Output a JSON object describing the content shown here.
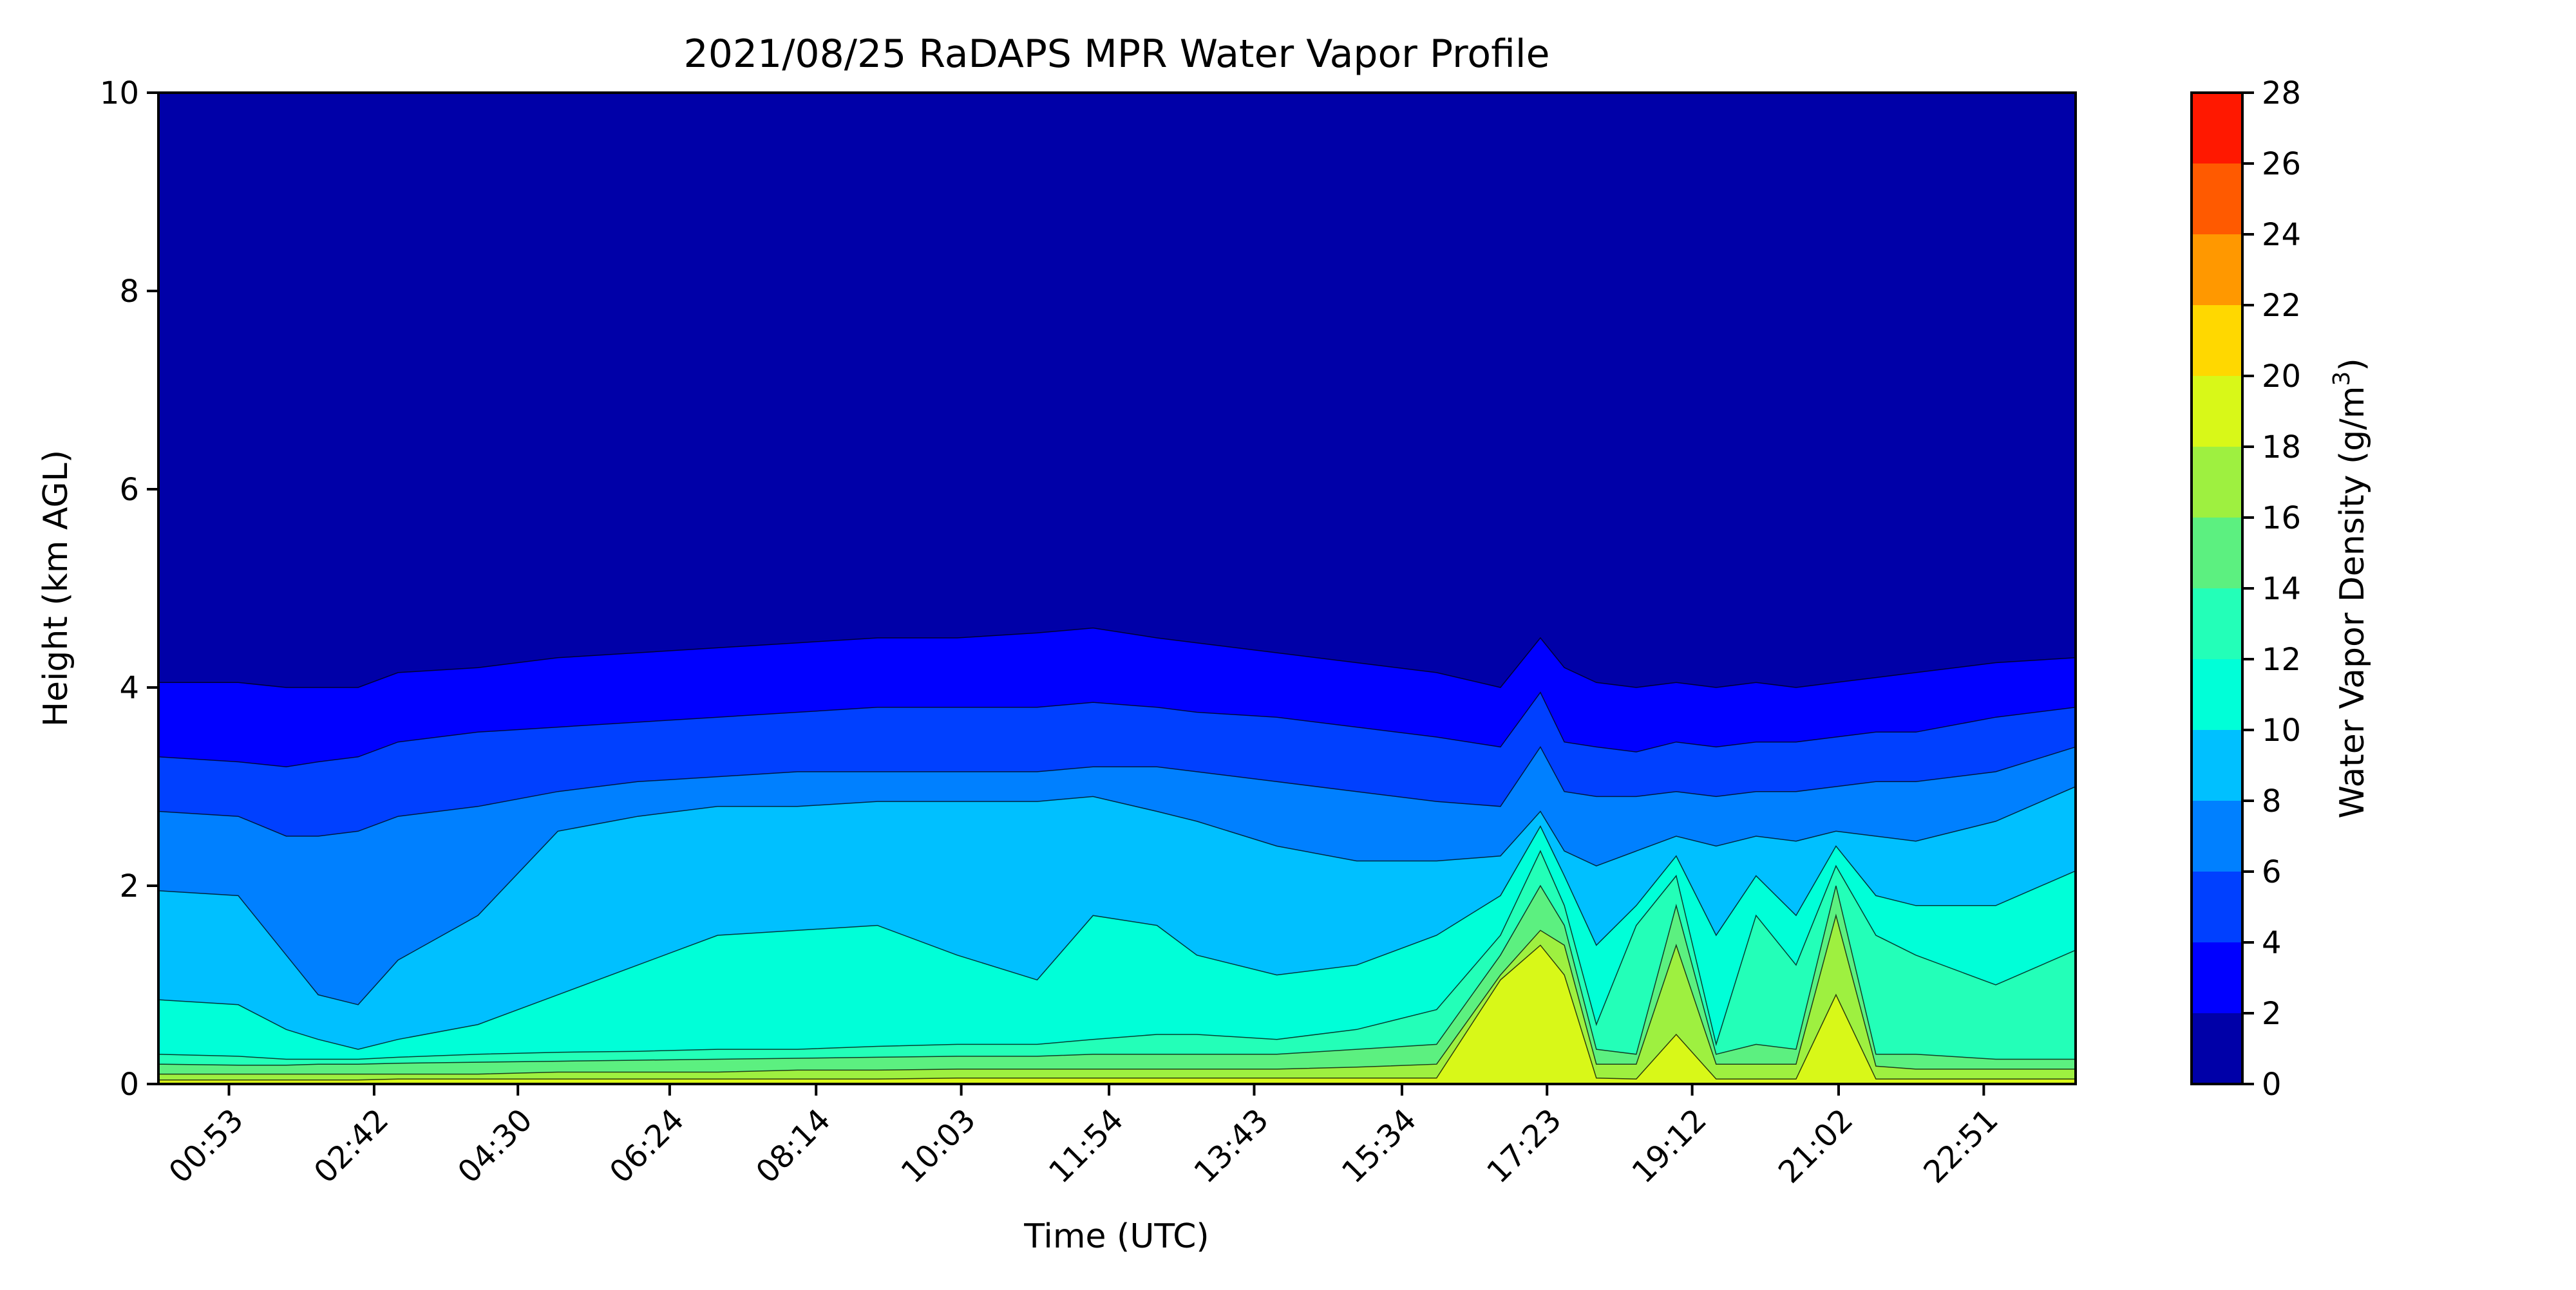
{
  "chart_data": {
    "type": "heatmap",
    "subtype": "filled-contour",
    "title": "2021/08/25 RaDAPS MPR Water Vapor Profile",
    "xlabel": "Time (UTC)",
    "ylabel": "Height (km AGL)",
    "xlim_hours": [
      0.0,
      24.0
    ],
    "ylim": [
      0,
      10
    ],
    "x_ticks": [
      {
        "label": "00:53",
        "hours": 0.883
      },
      {
        "label": "02:42",
        "hours": 2.7
      },
      {
        "label": "04:30",
        "hours": 4.5
      },
      {
        "label": "06:24",
        "hours": 6.4
      },
      {
        "label": "08:14",
        "hours": 8.233
      },
      {
        "label": "10:03",
        "hours": 10.05
      },
      {
        "label": "11:54",
        "hours": 11.9
      },
      {
        "label": "13:43",
        "hours": 13.717
      },
      {
        "label": "15:34",
        "hours": 15.567
      },
      {
        "label": "17:23",
        "hours": 17.383
      },
      {
        "label": "19:12",
        "hours": 19.2
      },
      {
        "label": "21:02",
        "hours": 21.033
      },
      {
        "label": "22:51",
        "hours": 22.85
      }
    ],
    "y_ticks": [
      0,
      2,
      4,
      6,
      8,
      10
    ],
    "colorbar": {
      "label": "Water Vapor Density (g/m",
      "label_sup": "3",
      "label_end": ")",
      "levels": [
        0,
        2,
        4,
        6,
        8,
        10,
        12,
        14,
        16,
        18,
        20,
        22,
        24,
        26,
        28
      ],
      "colors": [
        "#0000a8",
        "#0000ff",
        "#0040ff",
        "#0080ff",
        "#00c0ff",
        "#00ffd8",
        "#23ffb8",
        "#5cf080",
        "#9ef040",
        "#d8f818",
        "#ffd800",
        "#ff9800",
        "#ff5a00",
        "#ff1800",
        "#a80000"
      ]
    },
    "contour_boundaries_km": {
      "hours": [
        0.0,
        1.0,
        1.6,
        2.0,
        2.5,
        3.0,
        4.0,
        5.0,
        6.0,
        7.0,
        8.0,
        9.0,
        10.0,
        11.0,
        11.7,
        12.5,
        13.0,
        14.0,
        15.0,
        16.0,
        16.8,
        17.3,
        17.6,
        18.0,
        18.5,
        19.0,
        19.5,
        20.0,
        20.5,
        21.0,
        21.5,
        22.0,
        23.0,
        24.0
      ],
      "2": [
        4.05,
        4.05,
        4.0,
        4.0,
        4.0,
        4.15,
        4.2,
        4.3,
        4.35,
        4.4,
        4.45,
        4.5,
        4.5,
        4.55,
        4.6,
        4.5,
        4.45,
        4.35,
        4.25,
        4.15,
        4.0,
        4.5,
        4.2,
        4.05,
        4.0,
        4.05,
        4.0,
        4.05,
        4.0,
        4.05,
        4.1,
        4.15,
        4.25,
        4.3
      ],
      "4": [
        3.3,
        3.25,
        3.2,
        3.25,
        3.3,
        3.45,
        3.55,
        3.6,
        3.65,
        3.7,
        3.75,
        3.8,
        3.8,
        3.8,
        3.85,
        3.8,
        3.75,
        3.7,
        3.6,
        3.5,
        3.4,
        3.95,
        3.45,
        3.4,
        3.35,
        3.45,
        3.4,
        3.45,
        3.45,
        3.5,
        3.55,
        3.55,
        3.7,
        3.8
      ],
      "6": [
        2.75,
        2.7,
        2.5,
        2.5,
        2.55,
        2.7,
        2.8,
        2.95,
        3.05,
        3.1,
        3.15,
        3.15,
        3.15,
        3.15,
        3.2,
        3.2,
        3.15,
        3.05,
        2.95,
        2.85,
        2.8,
        3.4,
        2.95,
        2.9,
        2.9,
        2.95,
        2.9,
        2.95,
        2.95,
        3.0,
        3.05,
        3.05,
        3.15,
        3.4
      ],
      "8": [
        1.95,
        1.9,
        1.3,
        0.9,
        0.8,
        1.25,
        1.7,
        2.55,
        2.7,
        2.8,
        2.8,
        2.85,
        2.85,
        2.85,
        2.9,
        2.75,
        2.65,
        2.4,
        2.25,
        2.25,
        2.3,
        2.75,
        2.35,
        2.2,
        2.35,
        2.5,
        2.4,
        2.5,
        2.45,
        2.55,
        2.5,
        2.45,
        2.65,
        3.0
      ],
      "10": [
        0.85,
        0.8,
        0.55,
        0.45,
        0.35,
        0.45,
        0.6,
        0.9,
        1.2,
        1.5,
        1.55,
        1.6,
        1.3,
        1.05,
        1.7,
        1.6,
        1.3,
        1.1,
        1.2,
        1.5,
        1.9,
        2.6,
        2.1,
        1.4,
        1.8,
        2.3,
        1.5,
        2.1,
        1.7,
        2.4,
        1.9,
        1.8,
        1.8,
        2.15
      ],
      "12": [
        0.3,
        0.28,
        0.25,
        0.25,
        0.25,
        0.27,
        0.3,
        0.32,
        0.33,
        0.35,
        0.35,
        0.38,
        0.4,
        0.4,
        0.45,
        0.5,
        0.5,
        0.45,
        0.55,
        0.75,
        1.5,
        2.35,
        1.8,
        0.6,
        1.6,
        2.1,
        0.4,
        1.7,
        1.2,
        2.2,
        1.5,
        1.3,
        1.0,
        1.35
      ],
      "14": [
        0.2,
        0.19,
        0.19,
        0.2,
        0.2,
        0.21,
        0.22,
        0.23,
        0.24,
        0.25,
        0.26,
        0.27,
        0.28,
        0.28,
        0.3,
        0.3,
        0.3,
        0.3,
        0.35,
        0.4,
        1.3,
        2.0,
        1.6,
        0.35,
        0.3,
        1.8,
        0.3,
        0.4,
        0.35,
        2.0,
        0.3,
        0.3,
        0.25,
        0.25
      ],
      "16": [
        0.1,
        0.1,
        0.1,
        0.1,
        0.1,
        0.1,
        0.1,
        0.12,
        0.12,
        0.12,
        0.14,
        0.14,
        0.15,
        0.15,
        0.15,
        0.15,
        0.15,
        0.15,
        0.17,
        0.2,
        1.1,
        1.55,
        1.4,
        0.2,
        0.2,
        1.4,
        0.2,
        0.2,
        0.2,
        1.7,
        0.18,
        0.15,
        0.15,
        0.15
      ],
      "18": [
        0.04,
        0.04,
        0.04,
        0.04,
        0.04,
        0.05,
        0.05,
        0.05,
        0.05,
        0.05,
        0.05,
        0.05,
        0.06,
        0.06,
        0.06,
        0.06,
        0.06,
        0.06,
        0.06,
        0.06,
        1.05,
        1.4,
        1.1,
        0.06,
        0.05,
        0.5,
        0.05,
        0.05,
        0.05,
        0.9,
        0.05,
        0.05,
        0.05,
        0.05
      ]
    }
  }
}
